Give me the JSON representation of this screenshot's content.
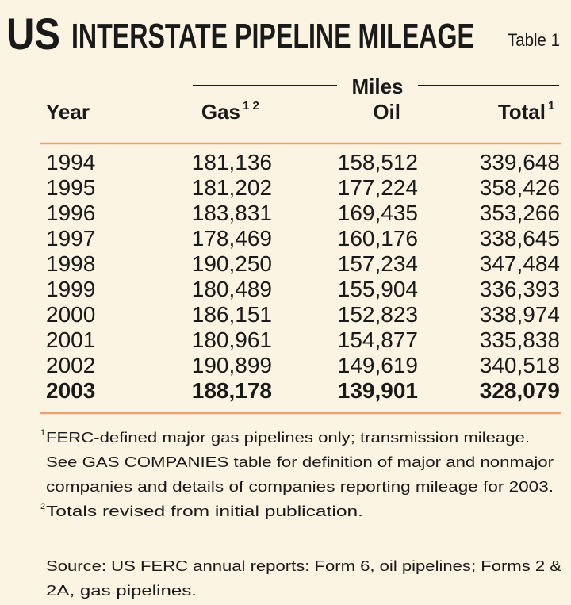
{
  "header": {
    "title_prefix": "US",
    "title": "INTERSTATE PIPELINE MILEAGE",
    "table_label": "Table 1"
  },
  "table": {
    "group_header": "Miles",
    "columns": [
      {
        "label": "Year",
        "sup": null
      },
      {
        "label": "Gas",
        "sup": "1 2"
      },
      {
        "label": "Oil",
        "sup": null
      },
      {
        "label": "Total",
        "sup": "1"
      }
    ],
    "rows": [
      [
        "1994",
        "181,136",
        "158,512",
        "339,648"
      ],
      [
        "1995",
        "181,202",
        "177,224",
        "358,426"
      ],
      [
        "1996",
        "183,831",
        "169,435",
        "353,266"
      ],
      [
        "1997",
        "178,469",
        "160,176",
        "338,645"
      ],
      [
        "1998",
        "190,250",
        "157,234",
        "347,484"
      ],
      [
        "1999",
        "180,489",
        "155,904",
        "336,393"
      ],
      [
        "2000",
        "186,151",
        "152,823",
        "338,974"
      ],
      [
        "2001",
        "180,961",
        "154,877",
        "335,838"
      ],
      [
        "2002",
        "190,899",
        "149,619",
        "340,518"
      ],
      [
        "2003",
        "188,178",
        "139,901",
        "328,079"
      ]
    ]
  },
  "footnotes": [
    {
      "marker": "1",
      "lines": [
        "FERC-defined major gas pipelines only; transmission mileage.",
        "See GAS COMPANIES table for definition of major and nonmajor",
        "companies and details of companies reporting mileage for 2003."
      ]
    },
    {
      "marker": "2",
      "lines": [
        "Totals revised from initial publication."
      ]
    }
  ],
  "source": {
    "lines": [
      "Source: US FERC annual reports: Form 6, oil pipelines; Forms 2 &",
      "2A, gas pipelines."
    ]
  }
}
